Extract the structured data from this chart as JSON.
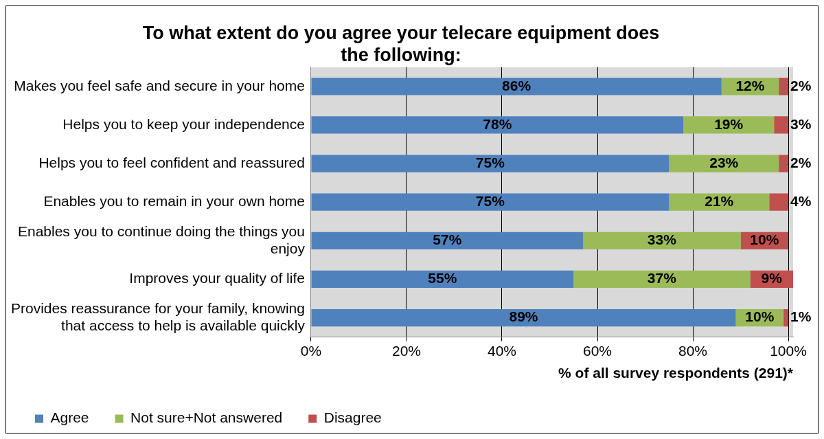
{
  "chart_data": {
    "type": "bar",
    "orientation": "horizontal",
    "stacked": true,
    "title": "To what extent do you agree your telecare equipment does the following:",
    "xlabel": "% of all survey respondents (291)*",
    "categories": [
      "Makes you feel safe and secure in your home",
      "Helps you to keep your independence",
      "Helps you to feel confident and reassured",
      "Enables you to remain in your own home",
      "Enables you to continue doing the things you enjoy",
      "Improves your quality of life",
      "Provides reassurance for your family, knowing that access to help is available quickly"
    ],
    "series": [
      {
        "name": "Agree",
        "color": "#4f81bd",
        "values": [
          86,
          78,
          75,
          75,
          57,
          55,
          89
        ],
        "value_labels": [
          "86%",
          "78%",
          "75%",
          "75%",
          "57%",
          "55%",
          "89%"
        ]
      },
      {
        "name": "Not sure+Not answered",
        "color": "#9bbb59",
        "values": [
          12,
          19,
          23,
          21,
          33,
          37,
          10
        ],
        "value_labels": [
          "12%",
          "19%",
          "23%",
          "21%",
          "33%",
          "37%",
          "10%"
        ]
      },
      {
        "name": "Disagree",
        "color": "#c0504d",
        "values": [
          2,
          3,
          2,
          4,
          10,
          9,
          1
        ],
        "value_labels": [
          "2%",
          "3%",
          "2%",
          "4%",
          "10%",
          "9%",
          "1%"
        ]
      }
    ],
    "xlim": [
      0,
      101
    ],
    "xticks": [
      {
        "value": 0,
        "label": "0%"
      },
      {
        "value": 20,
        "label": "20%"
      },
      {
        "value": 40,
        "label": "40%"
      },
      {
        "value": 60,
        "label": "60%"
      },
      {
        "value": 80,
        "label": "80%"
      },
      {
        "value": 100,
        "label": "100%"
      }
    ],
    "grid": "x",
    "legend": "bottom"
  }
}
